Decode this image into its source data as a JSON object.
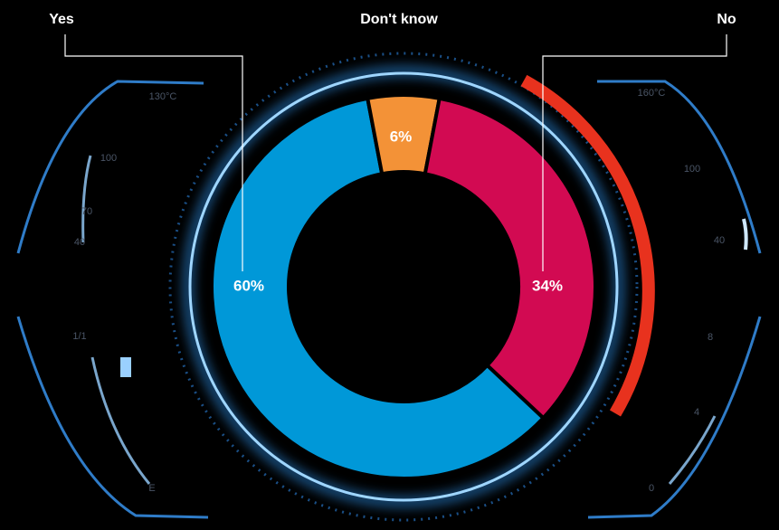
{
  "chart_data": {
    "type": "donut",
    "categories": [
      "Yes",
      "Don't know",
      "No"
    ],
    "values": [
      60,
      6,
      34
    ],
    "value_labels": [
      "60%",
      "6%",
      "34%"
    ],
    "colors": [
      "#0098d8",
      "#f39237",
      "#d20a52"
    ]
  },
  "gauge_labels": [
    "130°C",
    "100",
    "70",
    "40",
    "1/1",
    "E",
    "160°C",
    "100",
    "40",
    "8",
    "4",
    "0"
  ]
}
